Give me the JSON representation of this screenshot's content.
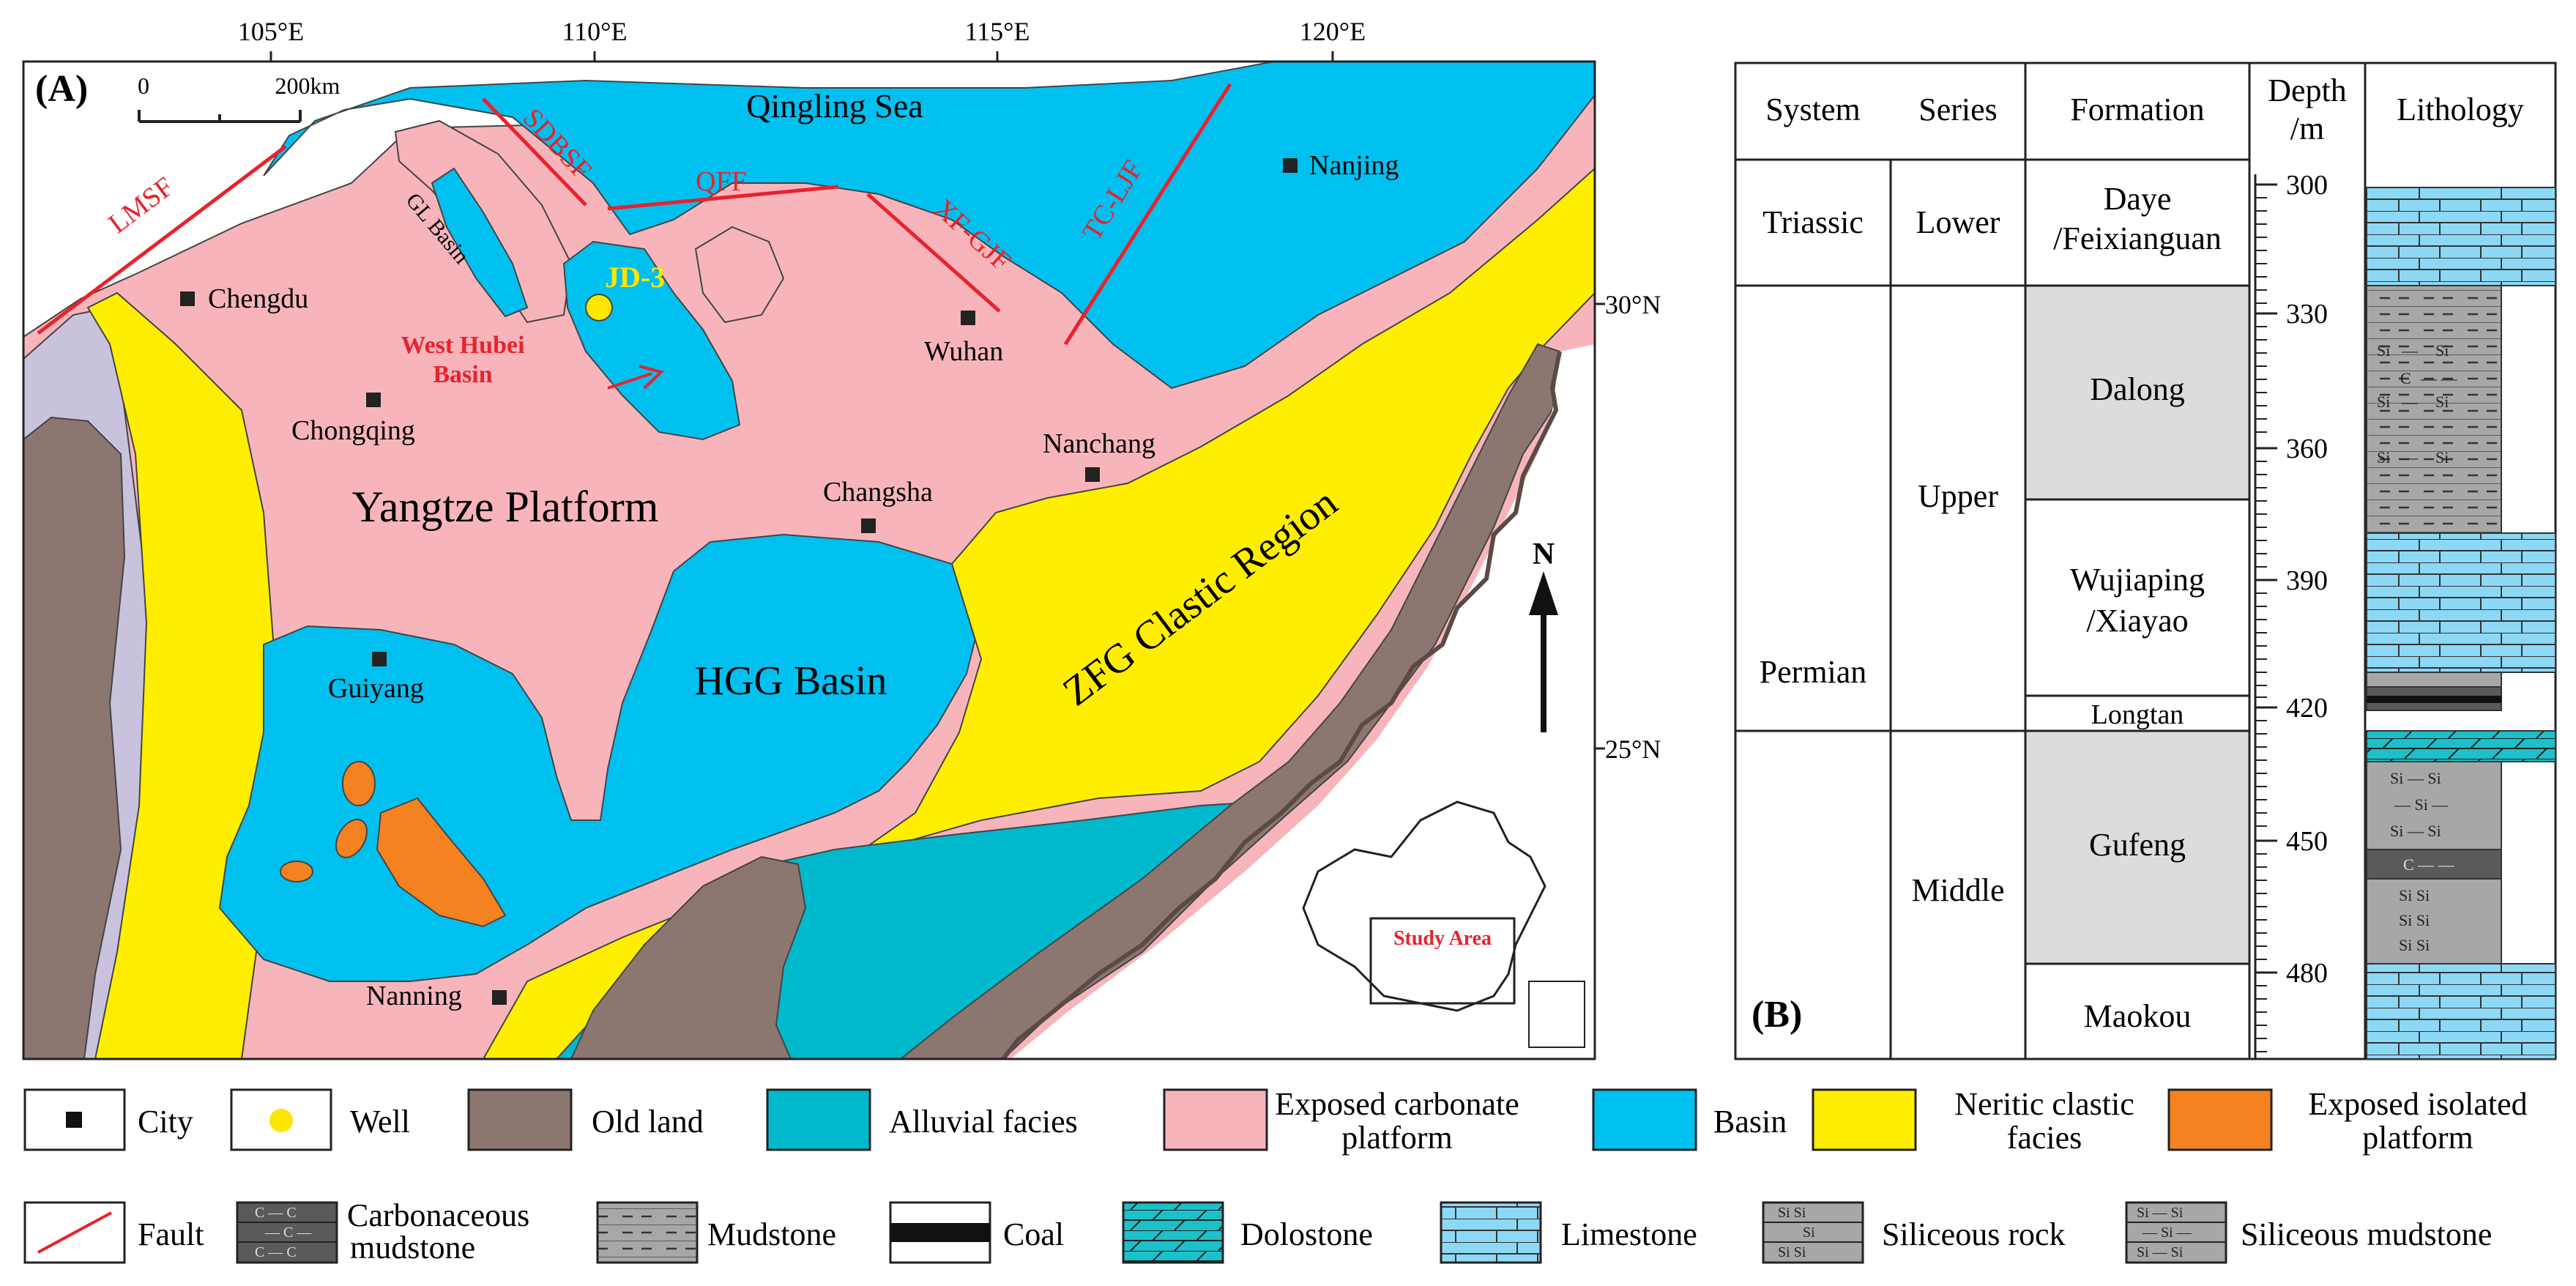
{
  "panel_a": {
    "label": "(A)",
    "scale": {
      "zero": "0",
      "dist": "200km"
    },
    "lon_labels": [
      "105°E",
      "110°E",
      "115°E",
      "120°E"
    ],
    "lat_labels": [
      "30°N",
      "25°N"
    ],
    "sea_label": "Qingling Sea",
    "platform_label": "Yangtze Platform",
    "hgg_label": "HGG Basin",
    "zfg_label": "ZFG Clastic Region",
    "gl_label": "GL Basin",
    "west_hubei_line1": "West Hubei",
    "west_hubei_line2": "Basin",
    "well_label": "JD-3",
    "north_label": "N",
    "study_area": "Study Area",
    "faults": {
      "lmsf": "LMSF",
      "sdbsf": "SDBSF",
      "qff": "QFF",
      "xfgjf": "XF-GJF",
      "tcljf": "TC-LJF"
    },
    "cities": {
      "chengdu": "Chengdu",
      "chongqing": "Chongqing",
      "wuhan": "Wuhan",
      "nanjing": "Nanjing",
      "changsha": "Changsha",
      "nanchang": "Nanchang",
      "guiyang": "Guiyang",
      "nanning": "Nanning"
    },
    "colors": {
      "old_land": "#8c7670",
      "basin": "#00c0f0",
      "platform": "#f7b5bb",
      "neritic": "#ffee00",
      "alluvial": "#00b9cc",
      "isolated": "#f58220",
      "purple": "#c9c2dd",
      "fault": "#e8222e",
      "well": "#ffe600"
    }
  },
  "panel_b": {
    "label": "(B)",
    "headers": {
      "system": "System",
      "series": "Series",
      "formation": "Formation",
      "depth1": "Depth",
      "depth2": "/m",
      "lithology": "Lithology"
    },
    "systems": {
      "triassic": "Triassic",
      "permian": "Permian"
    },
    "series": {
      "lower": "Lower",
      "upper": "Upper",
      "middle": "Middle"
    },
    "formations": {
      "daye1": "Daye",
      "daye2": "/Feixianguan",
      "dalong": "Dalong",
      "wujiaping1": "Wujiaping",
      "wujiaping2": "/Xiayao",
      "longtan": "Longtan",
      "gufeng": "Gufeng",
      "maokou": "Maokou"
    },
    "depth_ticks": [
      "300",
      "330",
      "360",
      "390",
      "420",
      "450",
      "480"
    ]
  },
  "legend": {
    "city": "City",
    "well": "Well",
    "old_land": "Old land",
    "alluvial": "Alluvial facies",
    "exposed_carb1": "Exposed carbonate",
    "exposed_carb2": "platform",
    "basin": "Basin",
    "neritic1": "Neritic clastic",
    "neritic2": "facies",
    "isolated1": "Exposed isolated",
    "isolated2": "platform",
    "fault": "Fault",
    "carb_mud1": "Carbonaceous",
    "carb_mud2": "mudstone",
    "mudstone": "Mudstone",
    "coal": "Coal",
    "dolostone": "Dolostone",
    "limestone": "Limestone",
    "siliceous_rock": "Siliceous rock",
    "siliceous_mudstone": "Siliceous mudstone",
    "sym_c": "C",
    "sym_si": "Si"
  }
}
